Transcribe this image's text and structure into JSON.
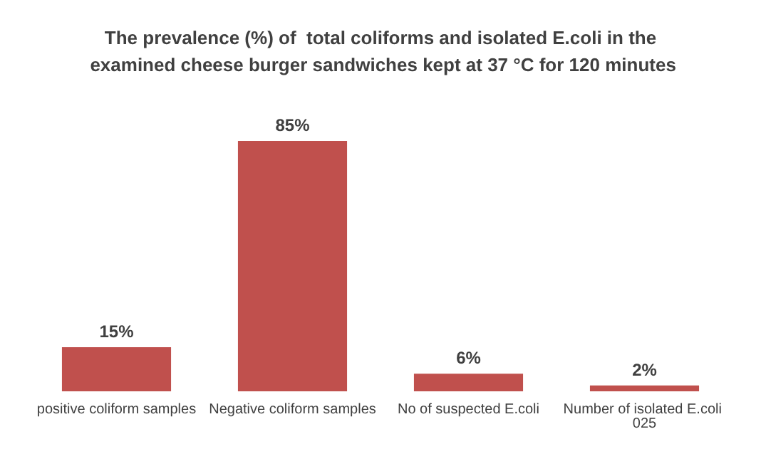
{
  "chart_data": {
    "type": "bar",
    "title": "The prevalence (%) of  total coliforms and isolated E.coli in the examined cheese burger sandwiches kept at 37 °C for 120 minutes",
    "categories": [
      "positive coliform samples",
      "Negative coliform samples",
      "No of suspected E.coli",
      "Number of isolated E.coli 025"
    ],
    "values": [
      15,
      85,
      6,
      2
    ],
    "value_labels": [
      "15%",
      "85%",
      "6%",
      "2%"
    ],
    "color": "#c0504d"
  }
}
